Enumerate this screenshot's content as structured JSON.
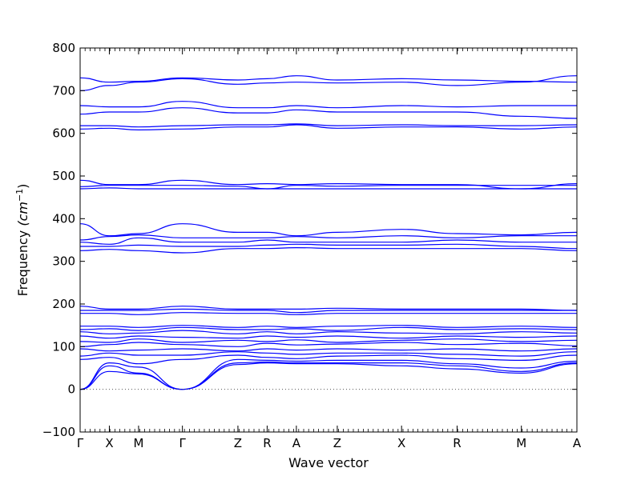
{
  "chart_data": {
    "type": "line",
    "title": "",
    "xlabel": "Wave vector",
    "ylabel_main": "Frequency ",
    "ylabel_unit": "(cm",
    "ylabel_exp": "−1",
    "ylabel_close": ")",
    "ylim": [
      -100,
      800
    ],
    "yticks": [
      -100,
      0,
      100,
      200,
      300,
      400,
      500,
      600,
      700,
      800
    ],
    "ytick_labels": [
      "−100",
      "0",
      "100",
      "200",
      "300",
      "400",
      "500",
      "600",
      "700",
      "800"
    ],
    "grid": false,
    "legend": "none",
    "line_color": "#0000ff",
    "zero_line": {
      "y": 0,
      "style": "dotted",
      "color": "#555555"
    },
    "xlim": [
      0,
      17
    ],
    "high_symmetry_points": [
      {
        "label": "Γ",
        "x": 0
      },
      {
        "label": "X",
        "x": 1
      },
      {
        "label": "M",
        "x": 2
      },
      {
        "label": "Γ",
        "x": 3.5
      },
      {
        "label": "Z",
        "x": 5.4
      },
      {
        "label": "R",
        "x": 6.4
      },
      {
        "label": "A",
        "x": 7.4
      },
      {
        "label": "Z",
        "x": 8.8
      },
      {
        "label": "X",
        "x": 11
      },
      {
        "label": "R",
        "x": 12.9
      },
      {
        "label": "M",
        "x": 15.1
      },
      {
        "label": "A",
        "x": 17
      }
    ],
    "series": [
      {
        "values": [
          0,
          42,
          36,
          0,
          58,
          62,
          60,
          60,
          55,
          48,
          38,
          60
        ]
      },
      {
        "values": [
          0,
          55,
          38,
          0,
          62,
          64,
          62,
          62,
          62,
          55,
          42,
          62
        ]
      },
      {
        "values": [
          0,
          62,
          52,
          0,
          70,
          68,
          66,
          68,
          68,
          60,
          50,
          66
        ]
      },
      {
        "values": [
          70,
          75,
          60,
          70,
          80,
          75,
          72,
          78,
          80,
          72,
          68,
          80
        ]
      },
      {
        "values": [
          78,
          85,
          80,
          80,
          88,
          85,
          82,
          85,
          85,
          82,
          78,
          88
        ]
      },
      {
        "values": [
          95,
          90,
          92,
          95,
          90,
          95,
          92,
          95,
          92,
          95,
          90,
          95
        ]
      },
      {
        "values": [
          100,
          105,
          110,
          105,
          100,
          108,
          104,
          106,
          110,
          105,
          108,
          102
        ]
      },
      {
        "values": [
          112,
          110,
          118,
          110,
          115,
          112,
          116,
          110,
          115,
          118,
          112,
          115
        ]
      },
      {
        "values": [
          125,
          120,
          125,
          122,
          120,
          125,
          122,
          125,
          120,
          125,
          122,
          125
        ]
      },
      {
        "values": [
          135,
          130,
          132,
          138,
          130,
          135,
          130,
          135,
          132,
          130,
          135,
          132
        ]
      },
      {
        "values": [
          140,
          142,
          138,
          145,
          140,
          140,
          142,
          138,
          145,
          140,
          142,
          140
        ]
      },
      {
        "values": [
          148,
          148,
          145,
          150,
          145,
          148,
          145,
          148,
          150,
          145,
          148,
          145
        ]
      },
      {
        "values": [
          178,
          178,
          175,
          180,
          178,
          178,
          175,
          178,
          178,
          178,
          178,
          178
        ]
      },
      {
        "values": [
          185,
          185,
          185,
          188,
          185,
          185,
          180,
          185,
          185,
          185,
          185,
          185
        ]
      },
      {
        "values": [
          195,
          188,
          188,
          195,
          188,
          188,
          188,
          190,
          188,
          188,
          188,
          185
        ]
      },
      {
        "values": [
          325,
          328,
          325,
          320,
          330,
          330,
          332,
          330,
          330,
          330,
          330,
          325
        ]
      },
      {
        "values": [
          335,
          335,
          338,
          335,
          335,
          338,
          340,
          338,
          338,
          340,
          335,
          330
        ]
      },
      {
        "values": [
          345,
          340,
          355,
          345,
          345,
          350,
          345,
          345,
          345,
          350,
          345,
          345
        ]
      },
      {
        "values": [
          350,
          358,
          362,
          355,
          355,
          355,
          358,
          355,
          360,
          355,
          360,
          360
        ]
      },
      {
        "values": [
          388,
          360,
          365,
          388,
          368,
          368,
          360,
          368,
          375,
          365,
          362,
          368
        ]
      },
      {
        "values": [
          470,
          472,
          470,
          470,
          470,
          470,
          470,
          470,
          470,
          470,
          470,
          470
        ]
      },
      {
        "values": [
          475,
          478,
          478,
          478,
          476,
          470,
          478,
          476,
          478,
          478,
          478,
          478
        ]
      },
      {
        "values": [
          490,
          480,
          480,
          490,
          480,
          482,
          480,
          482,
          480,
          480,
          470,
          482
        ]
      },
      {
        "values": [
          610,
          612,
          608,
          610,
          615,
          615,
          620,
          612,
          615,
          615,
          610,
          615
        ]
      },
      {
        "values": [
          618,
          618,
          615,
          618,
          620,
          620,
          622,
          618,
          620,
          618,
          618,
          620
        ]
      },
      {
        "values": [
          645,
          650,
          650,
          660,
          648,
          648,
          655,
          650,
          650,
          650,
          640,
          635
        ]
      },
      {
        "values": [
          665,
          662,
          662,
          675,
          660,
          660,
          665,
          660,
          665,
          662,
          665,
          665
        ]
      },
      {
        "values": [
          700,
          712,
          720,
          728,
          715,
          718,
          720,
          718,
          720,
          712,
          720,
          735
        ]
      },
      {
        "values": [
          730,
          720,
          722,
          730,
          725,
          728,
          735,
          725,
          728,
          725,
          722,
          720
        ]
      }
    ]
  }
}
